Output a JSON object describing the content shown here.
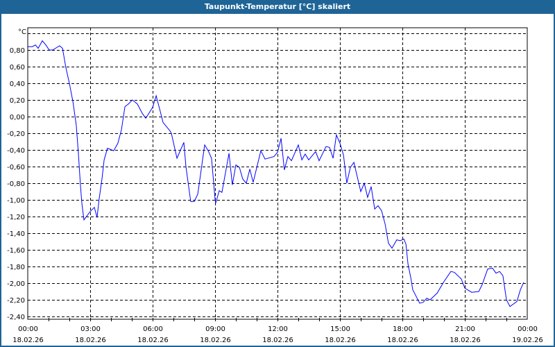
{
  "title": "Taupunkt-Temperatur [°C] skaliert",
  "chart_data": {
    "type": "line",
    "title": "Taupunkt-Temperatur [°C] skaliert",
    "ylabel": "°C",
    "xlabel": "",
    "ylim": [
      -2.4,
      1.067
    ],
    "xlim_hours": [
      0,
      24
    ],
    "grid": true,
    "line_color": "#0000ff",
    "y_ticks": [
      {
        "value": 0.8,
        "label": "0,80"
      },
      {
        "value": 0.6,
        "label": "0,60"
      },
      {
        "value": 0.4,
        "label": "0,40"
      },
      {
        "value": 0.2,
        "label": "0,20"
      },
      {
        "value": 0.0,
        "label": "0,00"
      },
      {
        "value": -0.2,
        "label": "-0,20"
      },
      {
        "value": -0.4,
        "label": "-0,40"
      },
      {
        "value": -0.6,
        "label": "-0,60"
      },
      {
        "value": -0.8,
        "label": "-0,80"
      },
      {
        "value": -1.0,
        "label": "-1,00"
      },
      {
        "value": -1.2,
        "label": "-1,20"
      },
      {
        "value": -1.4,
        "label": "-1,40"
      },
      {
        "value": -1.6,
        "label": "-1,60"
      },
      {
        "value": -1.8,
        "label": "-1,80"
      },
      {
        "value": -2.0,
        "label": "-2,00"
      },
      {
        "value": -2.2,
        "label": "-2,20"
      },
      {
        "value": -2.4,
        "label": "-2,40"
      }
    ],
    "x_ticks": [
      {
        "hour": 0,
        "time": "00:00",
        "date": "18.02.26"
      },
      {
        "hour": 3,
        "time": "03:00",
        "date": "18.02.26"
      },
      {
        "hour": 6,
        "time": "06:00",
        "date": "18.02.26"
      },
      {
        "hour": 9,
        "time": "09:00",
        "date": "18.02.26"
      },
      {
        "hour": 12,
        "time": "12:00",
        "date": "18.02.26"
      },
      {
        "hour": 15,
        "time": "15:00",
        "date": "18.02.26"
      },
      {
        "hour": 18,
        "time": "18:00",
        "date": "18.02.26"
      },
      {
        "hour": 21,
        "time": "21:00",
        "date": "18.02.26"
      },
      {
        "hour": 24,
        "time": "00:00",
        "date": "19.02.26"
      }
    ],
    "series": [
      {
        "name": "Taupunkt-Temperatur",
        "points": [
          [
            0,
            0.84
          ],
          [
            0.22,
            0.84
          ],
          [
            0.37,
            0.86
          ],
          [
            0.5,
            0.82
          ],
          [
            0.7,
            0.91
          ],
          [
            0.87,
            0.86
          ],
          [
            1.03,
            0.8
          ],
          [
            1.2,
            0.8
          ],
          [
            1.53,
            0.85
          ],
          [
            1.67,
            0.82
          ],
          [
            1.83,
            0.59
          ],
          [
            2,
            0.4
          ],
          [
            2.17,
            0.18
          ],
          [
            2.33,
            -0.1
          ],
          [
            2.43,
            -0.43
          ],
          [
            2.53,
            -0.82
          ],
          [
            2.6,
            -1.04
          ],
          [
            2.7,
            -1.24
          ],
          [
            3,
            -1.14
          ],
          [
            3.2,
            -1.09
          ],
          [
            3.33,
            -1.21
          ],
          [
            3.43,
            -0.99
          ],
          [
            3.57,
            -0.74
          ],
          [
            3.67,
            -0.52
          ],
          [
            3.83,
            -0.38
          ],
          [
            4.13,
            -0.41
          ],
          [
            4.33,
            -0.32
          ],
          [
            4.5,
            -0.16
          ],
          [
            4.67,
            0.12
          ],
          [
            4.83,
            0.15
          ],
          [
            5.03,
            0.2
          ],
          [
            5.27,
            0.15
          ],
          [
            5.5,
            0.04
          ],
          [
            5.67,
            -0.02
          ],
          [
            6,
            0.11
          ],
          [
            6.17,
            0.25
          ],
          [
            6.4,
            0.03
          ],
          [
            6.5,
            -0.07
          ],
          [
            6.83,
            -0.17
          ],
          [
            6.9,
            -0.2
          ],
          [
            7.17,
            -0.5
          ],
          [
            7.5,
            -0.31
          ],
          [
            7.6,
            -0.6
          ],
          [
            7.83,
            -1.02
          ],
          [
            8,
            -1.02
          ],
          [
            8.17,
            -0.93
          ],
          [
            8.5,
            -0.34
          ],
          [
            8.67,
            -0.41
          ],
          [
            8.83,
            -0.5
          ],
          [
            9,
            -0.99
          ],
          [
            9.03,
            -1.04
          ],
          [
            9.2,
            -0.89
          ],
          [
            9.33,
            -0.91
          ],
          [
            9.67,
            -0.44
          ],
          [
            9.83,
            -0.82
          ],
          [
            10,
            -0.58
          ],
          [
            10.17,
            -0.61
          ],
          [
            10.33,
            -0.75
          ],
          [
            10.5,
            -0.8
          ],
          [
            10.67,
            -0.63
          ],
          [
            10.83,
            -0.79
          ],
          [
            11.2,
            -0.41
          ],
          [
            11.4,
            -0.51
          ],
          [
            11.83,
            -0.48
          ],
          [
            12,
            -0.43
          ],
          [
            12.17,
            -0.26
          ],
          [
            12.33,
            -0.64
          ],
          [
            12.5,
            -0.48
          ],
          [
            12.67,
            -0.53
          ],
          [
            13,
            -0.34
          ],
          [
            13.17,
            -0.52
          ],
          [
            13.33,
            -0.45
          ],
          [
            13.5,
            -0.52
          ],
          [
            13.83,
            -0.42
          ],
          [
            14,
            -0.53
          ],
          [
            14.33,
            -0.36
          ],
          [
            14.5,
            -0.37
          ],
          [
            14.67,
            -0.5
          ],
          [
            14.83,
            -0.22
          ],
          [
            15,
            -0.32
          ],
          [
            15.17,
            -0.46
          ],
          [
            15.33,
            -0.8
          ],
          [
            15.5,
            -0.61
          ],
          [
            15.67,
            -0.55
          ],
          [
            15.83,
            -0.72
          ],
          [
            16,
            -0.9
          ],
          [
            16.17,
            -0.8
          ],
          [
            16.33,
            -0.97
          ],
          [
            16.5,
            -0.84
          ],
          [
            16.67,
            -1.11
          ],
          [
            16.83,
            -1.07
          ],
          [
            17,
            -1.13
          ],
          [
            17.17,
            -1.29
          ],
          [
            17.33,
            -1.52
          ],
          [
            17.5,
            -1.58
          ],
          [
            17.73,
            -1.48
          ],
          [
            17.9,
            -1.49
          ],
          [
            18.07,
            -1.47
          ],
          [
            18.17,
            -1.53
          ],
          [
            18.27,
            -1.77
          ],
          [
            18.4,
            -1.93
          ],
          [
            18.5,
            -2.08
          ],
          [
            18.83,
            -2.24
          ],
          [
            19,
            -2.23
          ],
          [
            19.17,
            -2.18
          ],
          [
            19.33,
            -2.2
          ],
          [
            19.67,
            -2.12
          ],
          [
            20,
            -1.98
          ],
          [
            20.33,
            -1.86
          ],
          [
            20.5,
            -1.87
          ],
          [
            20.83,
            -1.95
          ],
          [
            21,
            -2.06
          ],
          [
            21.33,
            -2.11
          ],
          [
            21.67,
            -2.1
          ],
          [
            21.83,
            -2.02
          ],
          [
            22.1,
            -1.83
          ],
          [
            22.33,
            -1.82
          ],
          [
            22.5,
            -1.88
          ],
          [
            22.67,
            -1.86
          ],
          [
            22.83,
            -1.91
          ],
          [
            23,
            -2.2
          ],
          [
            23.17,
            -2.28
          ],
          [
            23.5,
            -2.22
          ],
          [
            23.67,
            -2.08
          ],
          [
            23.83,
            -1.99
          ]
        ]
      }
    ]
  }
}
